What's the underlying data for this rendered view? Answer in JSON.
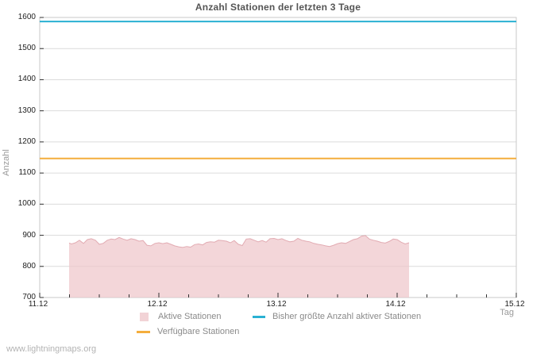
{
  "title": "Anzahl Stationen der letzten 3 Tage",
  "watermark": "www.lightningmaps.org",
  "chart_data": {
    "type": "area",
    "title": "Anzahl Stationen der letzten 3 Tage",
    "xlabel": "Tag",
    "ylabel": "Anzahl",
    "xlim": [
      11,
      15
    ],
    "ylim": [
      700,
      1600
    ],
    "grid": true,
    "legend_position": "bottom",
    "x_ticks": [
      {
        "x": 11,
        "label": "11.12"
      },
      {
        "x": 12,
        "label": "12.12"
      },
      {
        "x": 13,
        "label": "13.12"
      },
      {
        "x": 14,
        "label": "14.12"
      },
      {
        "x": 15,
        "label": "15.12"
      }
    ],
    "x_minor_tick_step": 0.25,
    "y_ticks": [
      700,
      800,
      900,
      1000,
      1100,
      1200,
      1300,
      1400,
      1500,
      1600
    ],
    "colors": {
      "grid": "#dcdcdc",
      "border": "#c9c9c9",
      "tick": "#333333"
    },
    "series": [
      {
        "name": "Aktive Stationen",
        "type": "area",
        "fill": "#eec6cb",
        "fill_opacity": 0.72,
        "stroke": "#e2abb2",
        "legend_color": "#f2d3d6",
        "points": [
          [
            11.247,
            875
          ],
          [
            11.267,
            872
          ],
          [
            11.3,
            876
          ],
          [
            11.333,
            884
          ],
          [
            11.367,
            874
          ],
          [
            11.4,
            886
          ],
          [
            11.433,
            889
          ],
          [
            11.467,
            884
          ],
          [
            11.5,
            871
          ],
          [
            11.533,
            874
          ],
          [
            11.567,
            884
          ],
          [
            11.6,
            888
          ],
          [
            11.633,
            886
          ],
          [
            11.667,
            893
          ],
          [
            11.7,
            888
          ],
          [
            11.733,
            884
          ],
          [
            11.767,
            889
          ],
          [
            11.8,
            886
          ],
          [
            11.833,
            881
          ],
          [
            11.867,
            883
          ],
          [
            11.9,
            868
          ],
          [
            11.933,
            866
          ],
          [
            11.967,
            874
          ],
          [
            12,
            876
          ],
          [
            12.033,
            873
          ],
          [
            12.067,
            876
          ],
          [
            12.1,
            871
          ],
          [
            12.133,
            866
          ],
          [
            12.167,
            863
          ],
          [
            12.2,
            861
          ],
          [
            12.233,
            864
          ],
          [
            12.267,
            862
          ],
          [
            12.3,
            870
          ],
          [
            12.333,
            872
          ],
          [
            12.367,
            869
          ],
          [
            12.4,
            877
          ],
          [
            12.433,
            879
          ],
          [
            12.467,
            878
          ],
          [
            12.5,
            884
          ],
          [
            12.533,
            883
          ],
          [
            12.567,
            881
          ],
          [
            12.6,
            876
          ],
          [
            12.633,
            883
          ],
          [
            12.667,
            871
          ],
          [
            12.7,
            867
          ],
          [
            12.733,
            888
          ],
          [
            12.767,
            889
          ],
          [
            12.8,
            884
          ],
          [
            12.833,
            879
          ],
          [
            12.867,
            883
          ],
          [
            12.9,
            878
          ],
          [
            12.933,
            889
          ],
          [
            12.967,
            890
          ],
          [
            13,
            886
          ],
          [
            13.033,
            889
          ],
          [
            13.067,
            883
          ],
          [
            13.1,
            879
          ],
          [
            13.133,
            881
          ],
          [
            13.167,
            890
          ],
          [
            13.2,
            884
          ],
          [
            13.233,
            881
          ],
          [
            13.267,
            879
          ],
          [
            13.3,
            874
          ],
          [
            13.333,
            871
          ],
          [
            13.367,
            869
          ],
          [
            13.4,
            866
          ],
          [
            13.433,
            864
          ],
          [
            13.467,
            868
          ],
          [
            13.5,
            873
          ],
          [
            13.533,
            876
          ],
          [
            13.567,
            874
          ],
          [
            13.6,
            880
          ],
          [
            13.633,
            886
          ],
          [
            13.667,
            889
          ],
          [
            13.7,
            897
          ],
          [
            13.733,
            899
          ],
          [
            13.767,
            888
          ],
          [
            13.8,
            884
          ],
          [
            13.833,
            881
          ],
          [
            13.867,
            877
          ],
          [
            13.9,
            875
          ],
          [
            13.933,
            880
          ],
          [
            13.967,
            888
          ],
          [
            14,
            886
          ],
          [
            14.033,
            878
          ],
          [
            14.067,
            872
          ],
          [
            14.1,
            876
          ]
        ]
      },
      {
        "name": "Bisher größte Anzahl aktiver Stationen",
        "type": "line",
        "color": "#2ab1d3",
        "legend_color": "#2ab1d3",
        "width": 2,
        "points": [
          [
            11,
            1587
          ],
          [
            15,
            1587
          ]
        ]
      },
      {
        "name": "Verfügbare Stationen",
        "type": "line",
        "color": "#f4ae3d",
        "legend_color": "#f4ae3d",
        "width": 2,
        "points": [
          [
            11,
            1147
          ],
          [
            15,
            1147
          ]
        ]
      }
    ]
  }
}
